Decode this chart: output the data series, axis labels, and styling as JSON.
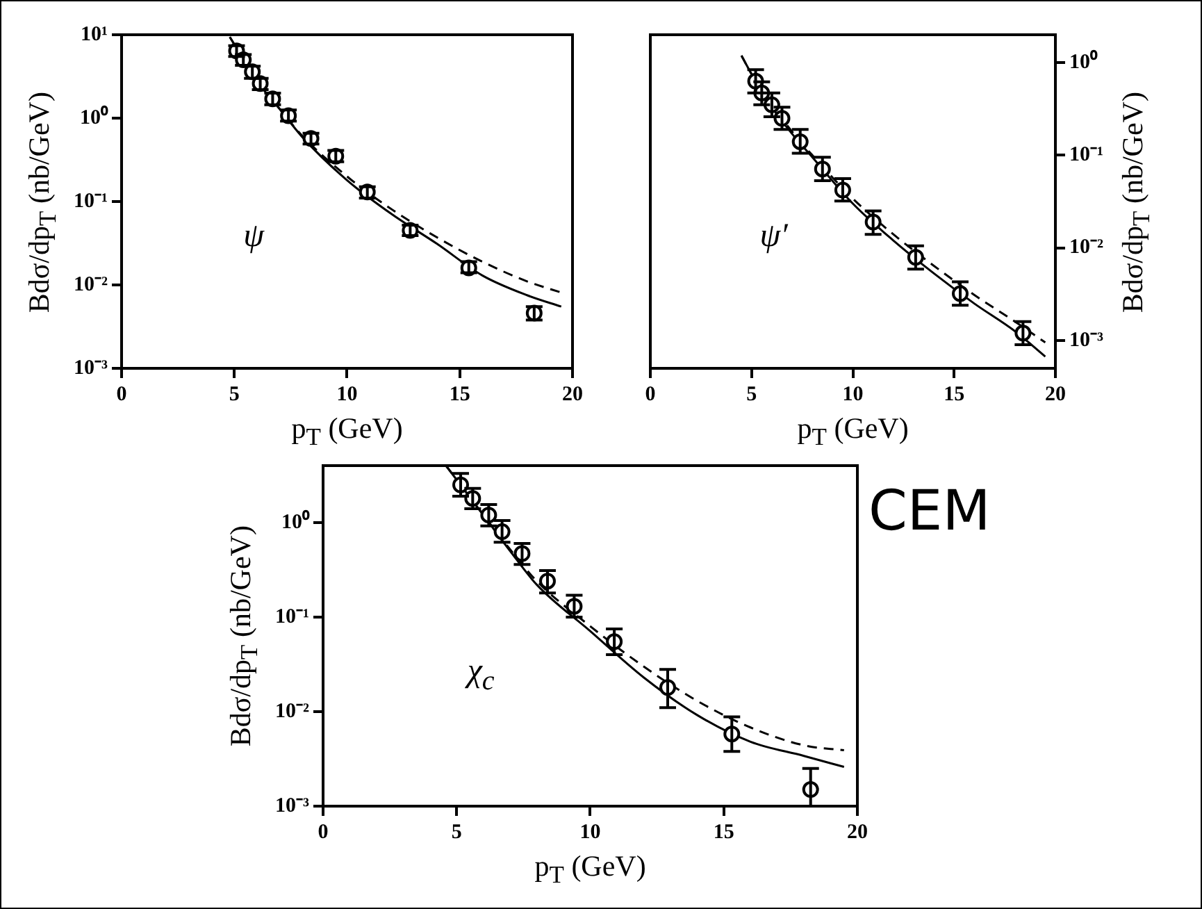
{
  "chart_data": [
    {
      "type": "scatter",
      "xlabel": "p$_{T}$ (GeV)",
      "ylabel": "Bdσ/dp$_{T}$ (nb/GeV)",
      "annotations": [
        "ψ"
      ],
      "xlim": [
        0,
        20
      ],
      "xticks": [
        0,
        5,
        10,
        15,
        20
      ],
      "ylim": [
        0.001,
        10
      ],
      "log": true,
      "yticks": [
        {
          "value": 10,
          "label": "10¹"
        },
        {
          "value": 1,
          "label": "10⁰"
        },
        {
          "value": 0.1,
          "label": "10⁻¹"
        },
        {
          "value": 0.01,
          "label": "10⁻²"
        },
        {
          "value": 0.001,
          "label": "10⁻³"
        }
      ],
      "grid": false,
      "legend": false,
      "series": [
        {
          "type": "scatter",
          "color": "#000000",
          "marker": "circle",
          "x": [
            5.1,
            5.4,
            5.8,
            6.15,
            6.7,
            7.4,
            8.4,
            9.5,
            10.9,
            12.8,
            15.4,
            18.3
          ],
          "values": [
            6.4,
            5.0,
            3.6,
            2.6,
            1.7,
            1.07,
            0.57,
            0.35,
            0.13,
            0.045,
            0.016,
            0.0046
          ],
          "errors": [
            [
              5.5,
              7.4
            ],
            [
              4.3,
              5.8
            ],
            [
              3.0,
              4.2
            ],
            [
              2.2,
              3.0
            ],
            [
              1.45,
              2.0
            ],
            [
              0.92,
              1.25
            ],
            [
              0.49,
              0.66
            ],
            [
              0.3,
              0.41
            ],
            [
              0.11,
              0.15
            ],
            [
              0.039,
              0.052
            ],
            [
              0.014,
              0.019
            ],
            [
              0.0038,
              0.0055
            ]
          ]
        },
        {
          "type": "line",
          "color": "#000000",
          "marker": "none",
          "line_style": "solid",
          "x": [
            4.8,
            6,
            7,
            8,
            10,
            12,
            14,
            16,
            18,
            19.5
          ],
          "values": [
            9.4,
            2.8,
            1.3,
            0.6,
            0.18,
            0.07,
            0.031,
            0.013,
            0.0075,
            0.0055
          ]
        },
        {
          "type": "line",
          "color": "#000000",
          "marker": "none",
          "line_style": "dashed",
          "x": [
            4.8,
            6,
            7,
            8,
            10,
            12,
            14,
            16,
            18,
            19.5
          ],
          "values": [
            9.4,
            2.8,
            1.3,
            0.62,
            0.2,
            0.08,
            0.037,
            0.019,
            0.011,
            0.0081
          ]
        }
      ]
    },
    {
      "type": "scatter",
      "xlabel": "p$_{T}$ (GeV)",
      "y2label": "Bdσ/dp$_{T}$ (nb/GeV)",
      "annotations": [
        "ψ′"
      ],
      "xlim": [
        0,
        20
      ],
      "xticks": [
        0,
        5,
        10,
        15,
        20
      ],
      "y2lim": [
        0.0005,
        2
      ],
      "log": "y2",
      "y2ticks": [
        {
          "value": 1,
          "label": "10⁰"
        },
        {
          "value": 0.1,
          "label": "10⁻¹"
        },
        {
          "value": 0.01,
          "label": "10⁻²"
        },
        {
          "value": 0.001,
          "label": "10⁻³"
        }
      ],
      "grid": false,
      "legend": false,
      "series": [
        {
          "type": "scatter",
          "axis": "y2",
          "color": "#000000",
          "marker": "circle",
          "x": [
            5.2,
            5.5,
            6.0,
            6.5,
            7.4,
            8.5,
            9.5,
            11.0,
            13.1,
            15.3,
            18.4
          ],
          "values": [
            0.63,
            0.47,
            0.35,
            0.25,
            0.14,
            0.071,
            0.042,
            0.019,
            0.0079,
            0.0032,
            0.0012
          ],
          "errors": [
            [
              0.47,
              0.84
            ],
            [
              0.35,
              0.62
            ],
            [
              0.26,
              0.47
            ],
            [
              0.19,
              0.33
            ],
            [
              0.105,
              0.19
            ],
            [
              0.053,
              0.095
            ],
            [
              0.032,
              0.056
            ],
            [
              0.014,
              0.025
            ],
            [
              0.0059,
              0.0105
            ],
            [
              0.0024,
              0.0043
            ],
            [
              0.0009,
              0.0016
            ]
          ]
        },
        {
          "type": "line",
          "axis": "y2",
          "color": "#000000",
          "marker": "none",
          "line_style": "solid",
          "x": [
            4.5,
            5,
            6,
            7,
            8,
            10,
            12,
            14,
            16,
            18,
            19.5
          ],
          "values": [
            1.19,
            0.75,
            0.33,
            0.17,
            0.095,
            0.03,
            0.012,
            0.0053,
            0.0025,
            0.00126,
            0.00067
          ]
        },
        {
          "type": "line",
          "axis": "y2",
          "color": "#000000",
          "marker": "none",
          "line_style": "dashed",
          "x": [
            4.5,
            5,
            6,
            7,
            8,
            10,
            12,
            14,
            16,
            18,
            19.5
          ],
          "values": [
            1.19,
            0.75,
            0.35,
            0.18,
            0.1,
            0.034,
            0.014,
            0.0064,
            0.0031,
            0.0016,
            0.00095
          ]
        }
      ]
    },
    {
      "type": "scatter",
      "xlabel": "p$_{T}$ (GeV)",
      "ylabel": "Bdσ/dp$_{T}$ (nb/GeV)",
      "annotations": [
        "χ$_{c}$",
        "CEM"
      ],
      "xlim": [
        0,
        20
      ],
      "xticks": [
        0,
        5,
        10,
        15,
        20
      ],
      "ylim": [
        0.001,
        4
      ],
      "log": true,
      "yticks": [
        {
          "value": 1,
          "label": "10⁰"
        },
        {
          "value": 0.1,
          "label": "10⁻¹"
        },
        {
          "value": 0.01,
          "label": "10⁻²"
        },
        {
          "value": 0.001,
          "label": "10⁻³"
        }
      ],
      "grid": false,
      "legend": false,
      "series": [
        {
          "type": "scatter",
          "color": "#000000",
          "marker": "circle",
          "x": [
            5.15,
            5.6,
            6.2,
            6.7,
            7.45,
            8.4,
            9.4,
            10.9,
            12.9,
            15.3,
            18.25
          ],
          "values": [
            2.5,
            1.8,
            1.2,
            0.8,
            0.47,
            0.24,
            0.13,
            0.055,
            0.018,
            0.0058,
            0.0015
          ],
          "errors": [
            [
              1.9,
              3.3
            ],
            [
              1.4,
              2.3
            ],
            [
              0.92,
              1.55
            ],
            [
              0.62,
              1.05
            ],
            [
              0.36,
              0.6
            ],
            [
              0.18,
              0.31
            ],
            [
              0.1,
              0.17
            ],
            [
              0.04,
              0.075
            ],
            [
              0.011,
              0.028
            ],
            [
              0.0038,
              0.0088
            ],
            [
              0.001,
              0.0025
            ]
          ]
        },
        {
          "type": "line",
          "color": "#000000",
          "marker": "none",
          "line_style": "solid",
          "x": [
            4.6,
            6,
            7,
            8,
            10,
            12,
            14,
            16,
            18,
            19.5
          ],
          "values": [
            4.0,
            1.2,
            0.5,
            0.22,
            0.071,
            0.023,
            0.0092,
            0.0048,
            0.0034,
            0.0026
          ]
        },
        {
          "type": "line",
          "color": "#000000",
          "marker": "none",
          "line_style": "dashed",
          "x": [
            4.6,
            6,
            7,
            8,
            10,
            12,
            14,
            16,
            18,
            19.5
          ],
          "values": [
            4.0,
            1.2,
            0.52,
            0.24,
            0.08,
            0.03,
            0.013,
            0.0068,
            0.0044,
            0.0039
          ]
        }
      ]
    }
  ]
}
